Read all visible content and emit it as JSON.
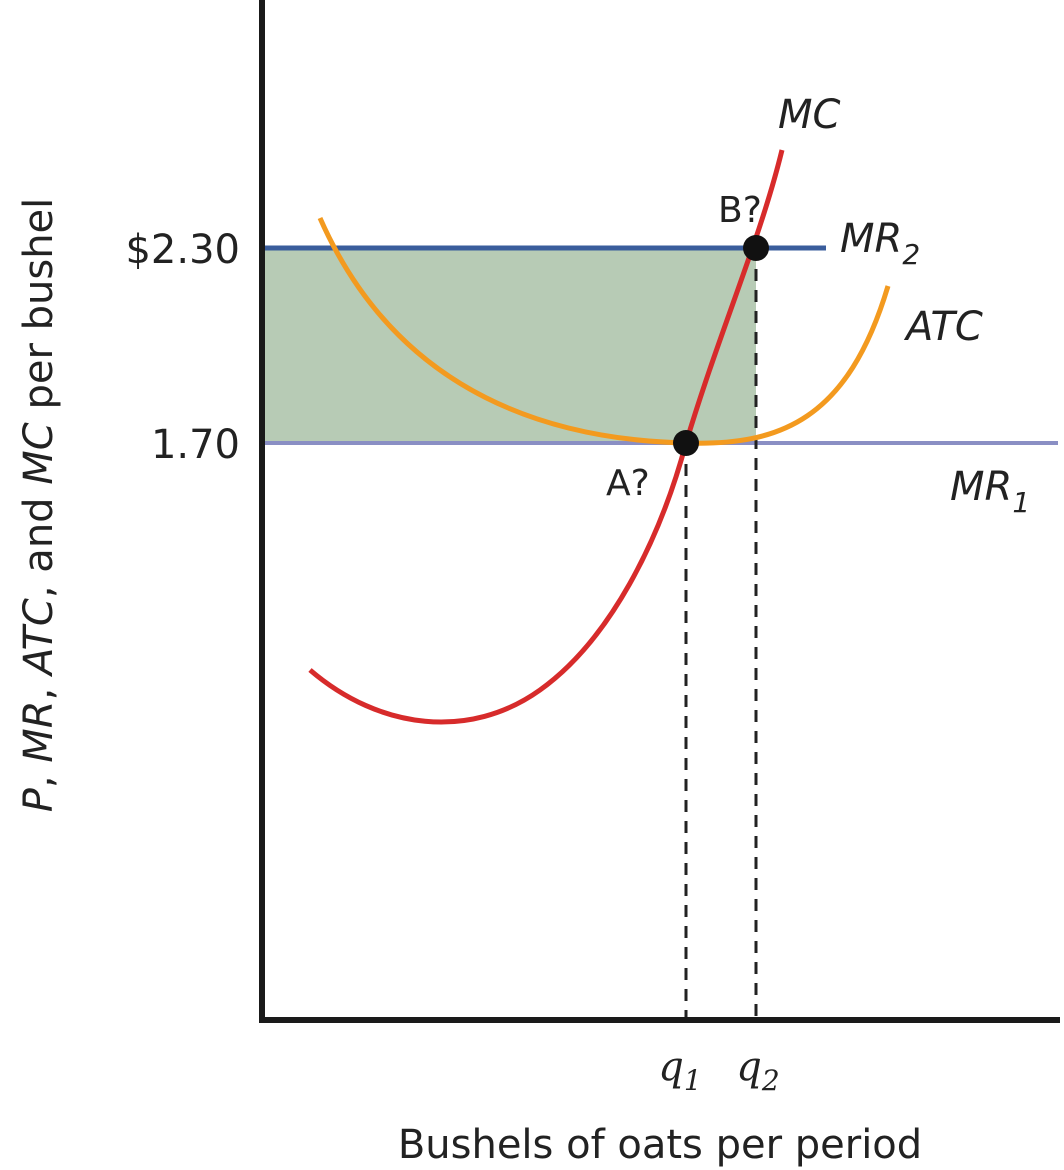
{
  "colors": {
    "mr2": "#3a5d9c",
    "mr1": "#8a8fc4",
    "mc": "#d72b2b",
    "atc": "#f39a1f",
    "shade": "#b7cbb5",
    "axis": "#1a1a1a"
  },
  "chart_data": {
    "type": "line",
    "xlabel": "Bushels of oats per period",
    "ylabel_parts": [
      "P",
      ", ",
      "MR",
      ", ",
      "ATC",
      ", and ",
      "MC",
      " per bushel"
    ],
    "y_ticks": [
      {
        "value": 2.3,
        "label": "$2.30"
      },
      {
        "value": 1.7,
        "label": "1.70"
      }
    ],
    "x_ticks": [
      {
        "name": "q1",
        "main": "q",
        "sub": "1"
      },
      {
        "name": "q2",
        "main": "q",
        "sub": "2"
      }
    ],
    "curves": {
      "mc": {
        "label": "MC"
      },
      "atc": {
        "label": "ATC"
      },
      "mr2": {
        "label_main": "MR",
        "label_sub": "2",
        "value": 2.3
      },
      "mr1": {
        "label_main": "MR",
        "label_sub": "1",
        "value": 1.7
      }
    },
    "points": [
      {
        "label": "A?",
        "price": 1.7,
        "quantity": "q1"
      },
      {
        "label": "B?",
        "price": 2.3,
        "quantity": "q2"
      }
    ]
  }
}
